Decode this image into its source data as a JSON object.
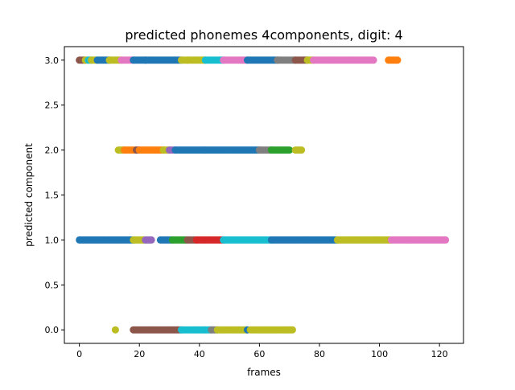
{
  "chart_data": {
    "type": "scatter",
    "title": "predicted phonemes 4components, digit: 4",
    "xlabel": "frames",
    "ylabel": "predicted component",
    "xlim": [
      -5,
      128
    ],
    "ylim": [
      -0.15,
      3.15
    ],
    "xticks": [
      0,
      20,
      40,
      60,
      80,
      100,
      120
    ],
    "yticks": [
      0.0,
      0.5,
      1.0,
      1.5,
      2.0,
      2.5,
      3.0
    ],
    "xtick_labels": [
      "0",
      "20",
      "40",
      "60",
      "80",
      "100",
      "120"
    ],
    "ytick_labels": [
      "0.0",
      "0.5",
      "1.0",
      "1.5",
      "2.0",
      "2.5",
      "3.0"
    ],
    "grid": false,
    "legend": "none",
    "colors": {
      "blue": "#1f77b4",
      "orange": "#ff7f0e",
      "green": "#2ca02c",
      "red": "#d62728",
      "purple": "#9467bd",
      "brown": "#8c564b",
      "pink": "#e377c2",
      "gray": "#7f7f7f",
      "olive": "#bcbd22",
      "cyan": "#17becf"
    },
    "segments": [
      {
        "y": 3,
        "x_start": 0,
        "x_end": 2,
        "color": "brown"
      },
      {
        "y": 3,
        "x_start": 2,
        "x_end": 3,
        "color": "olive"
      },
      {
        "y": 3,
        "x_start": 3,
        "x_end": 4,
        "color": "cyan"
      },
      {
        "y": 3,
        "x_start": 4,
        "x_end": 6,
        "color": "olive"
      },
      {
        "y": 3,
        "x_start": 6,
        "x_end": 10,
        "color": "blue"
      },
      {
        "y": 3,
        "x_start": 10,
        "x_end": 14,
        "color": "olive"
      },
      {
        "y": 3,
        "x_start": 14,
        "x_end": 18,
        "color": "pink"
      },
      {
        "y": 3,
        "x_start": 18,
        "x_end": 22,
        "color": "blue"
      },
      {
        "y": 3,
        "x_start": 22,
        "x_end": 34,
        "color": "blue"
      },
      {
        "y": 3,
        "x_start": 34,
        "x_end": 36,
        "color": "olive"
      },
      {
        "y": 3,
        "x_start": 36,
        "x_end": 42,
        "color": "olive"
      },
      {
        "y": 3,
        "x_start": 42,
        "x_end": 48,
        "color": "cyan"
      },
      {
        "y": 3,
        "x_start": 48,
        "x_end": 56,
        "color": "pink"
      },
      {
        "y": 3,
        "x_start": 56,
        "x_end": 66,
        "color": "blue"
      },
      {
        "y": 3,
        "x_start": 66,
        "x_end": 72,
        "color": "gray"
      },
      {
        "y": 3,
        "x_start": 72,
        "x_end": 76,
        "color": "brown"
      },
      {
        "y": 3,
        "x_start": 76,
        "x_end": 78,
        "color": "olive"
      },
      {
        "y": 3,
        "x_start": 78,
        "x_end": 98,
        "color": "pink"
      },
      {
        "y": 3,
        "x_start": 103,
        "x_end": 106,
        "color": "orange"
      },
      {
        "y": 2,
        "x_start": 13,
        "x_end": 15,
        "color": "olive"
      },
      {
        "y": 2,
        "x_start": 15,
        "x_end": 19,
        "color": "orange"
      },
      {
        "y": 2,
        "x_start": 19,
        "x_end": 20,
        "color": "brown"
      },
      {
        "y": 2,
        "x_start": 20,
        "x_end": 28,
        "color": "orange"
      },
      {
        "y": 2,
        "x_start": 28,
        "x_end": 30,
        "color": "olive"
      },
      {
        "y": 2,
        "x_start": 30,
        "x_end": 32,
        "color": "purple"
      },
      {
        "y": 2,
        "x_start": 32,
        "x_end": 60,
        "color": "blue"
      },
      {
        "y": 2,
        "x_start": 60,
        "x_end": 64,
        "color": "gray"
      },
      {
        "y": 2,
        "x_start": 64,
        "x_end": 70,
        "color": "green"
      },
      {
        "y": 2,
        "x_start": 72,
        "x_end": 74,
        "color": "olive"
      },
      {
        "y": 1,
        "x_start": 0,
        "x_end": 18,
        "color": "blue"
      },
      {
        "y": 1,
        "x_start": 18,
        "x_end": 22,
        "color": "olive"
      },
      {
        "y": 1,
        "x_start": 22,
        "x_end": 24,
        "color": "purple"
      },
      {
        "y": 1,
        "x_start": 27,
        "x_end": 31,
        "color": "blue"
      },
      {
        "y": 1,
        "x_start": 31,
        "x_end": 36,
        "color": "green"
      },
      {
        "y": 1,
        "x_start": 36,
        "x_end": 39,
        "color": "brown"
      },
      {
        "y": 1,
        "x_start": 39,
        "x_end": 48,
        "color": "red"
      },
      {
        "y": 1,
        "x_start": 48,
        "x_end": 64,
        "color": "cyan"
      },
      {
        "y": 1,
        "x_start": 64,
        "x_end": 86,
        "color": "blue"
      },
      {
        "y": 1,
        "x_start": 86,
        "x_end": 104,
        "color": "olive"
      },
      {
        "y": 1,
        "x_start": 104,
        "x_end": 122,
        "color": "pink"
      },
      {
        "y": 0,
        "x_start": 12,
        "x_end": 12,
        "color": "olive"
      },
      {
        "y": 0,
        "x_start": 18,
        "x_end": 34,
        "color": "brown"
      },
      {
        "y": 0,
        "x_start": 34,
        "x_end": 44,
        "color": "cyan"
      },
      {
        "y": 0,
        "x_start": 44,
        "x_end": 46,
        "color": "gray"
      },
      {
        "y": 0,
        "x_start": 46,
        "x_end": 56,
        "color": "olive"
      },
      {
        "y": 0,
        "x_start": 56,
        "x_end": 56,
        "color": "blue"
      },
      {
        "y": 0,
        "x_start": 57,
        "x_end": 71,
        "color": "olive"
      }
    ]
  }
}
